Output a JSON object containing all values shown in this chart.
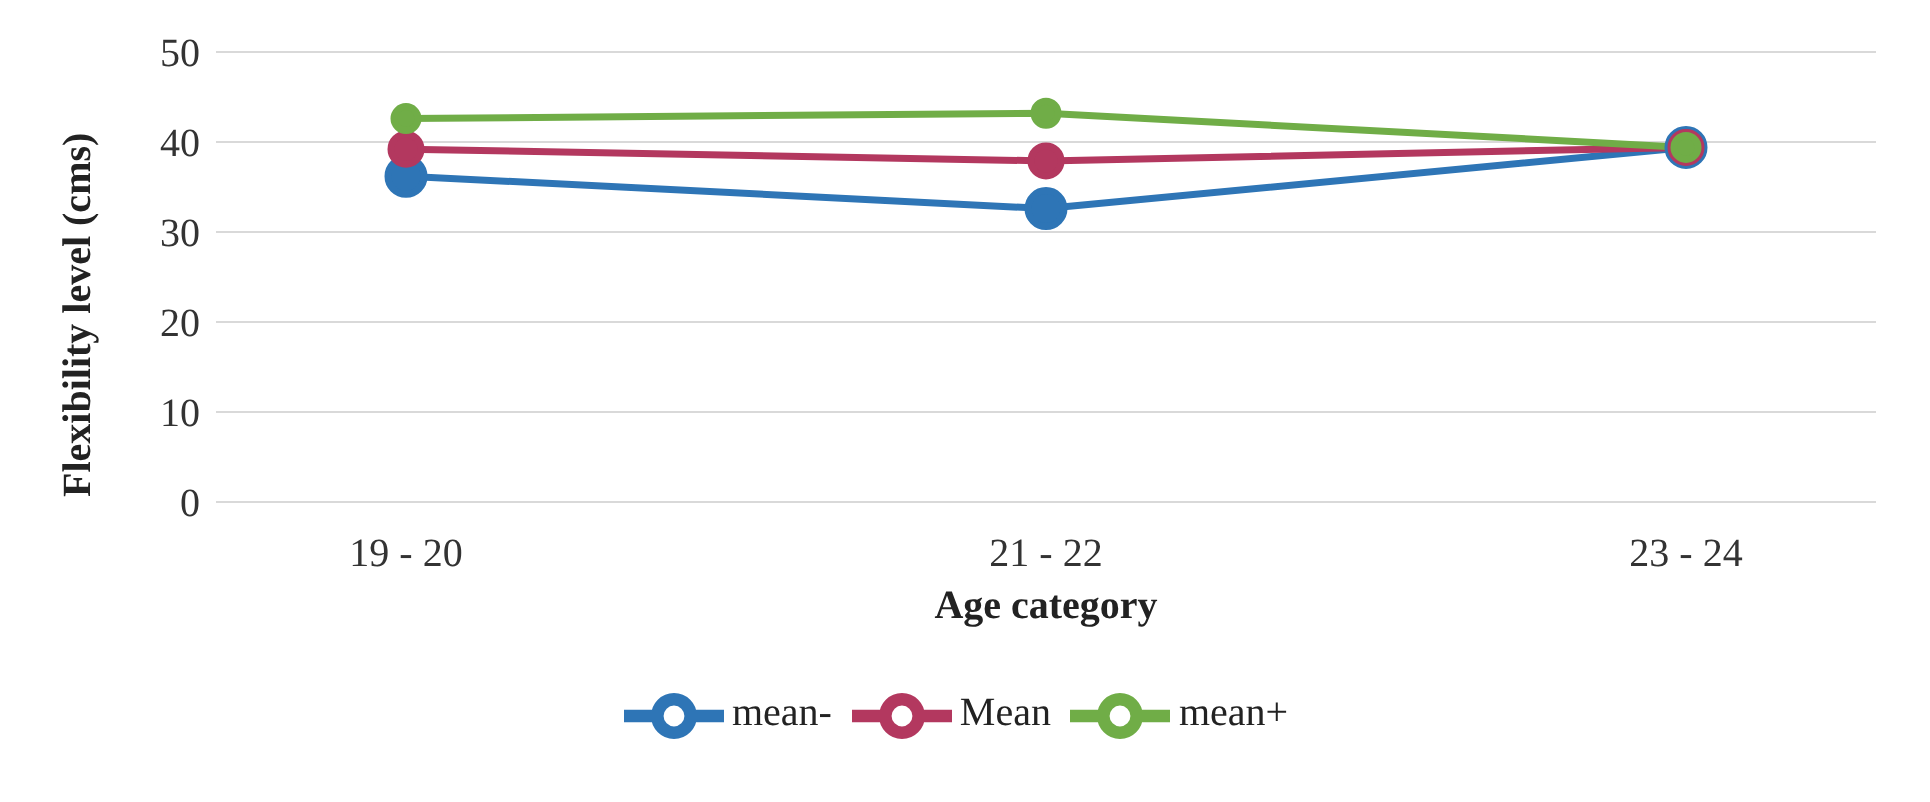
{
  "chart_data": {
    "type": "line",
    "xlabel": "Age category",
    "ylabel": "Flexibility level (cms)",
    "categories": [
      "19 - 20",
      "21 - 22",
      "23 - 24"
    ],
    "series": [
      {
        "name": "mean-",
        "color": "#2e75b6",
        "values": [
          36.2,
          32.6,
          39.4
        ]
      },
      {
        "name": "Mean",
        "color": "#b3385f",
        "values": [
          39.2,
          37.9,
          39.4
        ]
      },
      {
        "name": "mean+",
        "color": "#70ad47",
        "values": [
          42.6,
          43.2,
          39.4
        ]
      }
    ],
    "ylim": [
      0,
      50
    ],
    "yticks": [
      0,
      10,
      20,
      30,
      40,
      50
    ],
    "grid": "y",
    "legend": "bottom",
    "marker": "circle",
    "line_style": "solid"
  }
}
